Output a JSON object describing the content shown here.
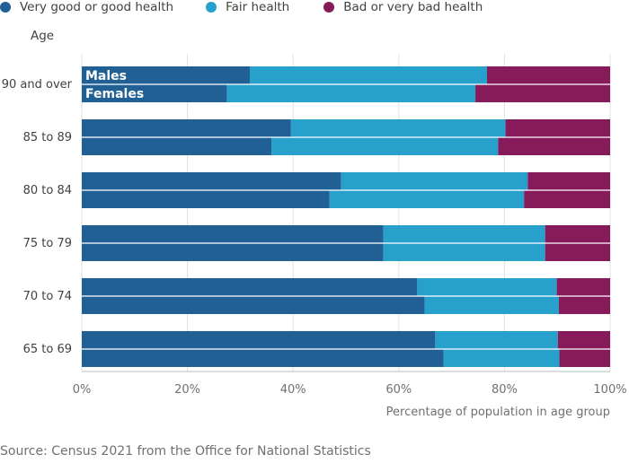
{
  "legend": {
    "items": [
      {
        "label": "Very good or good health",
        "color": "#206095"
      },
      {
        "label": "Fair health",
        "color": "#27a0cc"
      },
      {
        "label": "Bad or very bad health",
        "color": "#871a5b"
      }
    ]
  },
  "y_axis_heading": "Age",
  "source": "Source: Census 2021 from the Office for National Statistics",
  "chart_data": {
    "type": "bar",
    "orientation": "horizontal",
    "stacked": true,
    "title": "",
    "xlabel": "Percentage of population in age group",
    "ylabel": "Age",
    "xlim": [
      0,
      100
    ],
    "x_ticks": [
      0,
      20,
      40,
      60,
      80,
      100
    ],
    "x_tick_labels": [
      "0%",
      "20%",
      "40%",
      "60%",
      "80%",
      "100%"
    ],
    "categories": [
      "90 and over",
      "85 to 89",
      "80 to 84",
      "75 to 79",
      "70 to 74",
      "65 to 69"
    ],
    "sub_series_labels": [
      "Males",
      "Females"
    ],
    "colors": {
      "good": "#206095",
      "fair": "#27a0cc",
      "bad": "#871a5b"
    },
    "groups": [
      {
        "category": "90 and over",
        "males": {
          "good": 31.8,
          "fair": 44.9,
          "bad": 23.3
        },
        "females": {
          "good": 27.5,
          "fair": 47.0,
          "bad": 25.5
        }
      },
      {
        "category": "85 to 89",
        "males": {
          "good": 39.6,
          "fair": 40.6,
          "bad": 19.8
        },
        "females": {
          "good": 35.9,
          "fair": 42.9,
          "bad": 21.2
        }
      },
      {
        "category": "80 to 84",
        "males": {
          "good": 49.1,
          "fair": 35.3,
          "bad": 15.6
        },
        "females": {
          "good": 46.9,
          "fair": 36.8,
          "bad": 16.3
        }
      },
      {
        "category": "75 to 79",
        "males": {
          "good": 57.1,
          "fair": 30.6,
          "bad": 12.3
        },
        "females": {
          "good": 57.1,
          "fair": 30.6,
          "bad": 12.3
        }
      },
      {
        "category": "70 to 74",
        "males": {
          "good": 63.5,
          "fair": 26.4,
          "bad": 10.1
        },
        "females": {
          "good": 64.9,
          "fair": 25.4,
          "bad": 9.7
        }
      },
      {
        "category": "65 to 69",
        "males": {
          "good": 66.9,
          "fair": 23.2,
          "bad": 9.9
        },
        "females": {
          "good": 68.5,
          "fair": 21.9,
          "bad": 9.6
        }
      }
    ]
  }
}
